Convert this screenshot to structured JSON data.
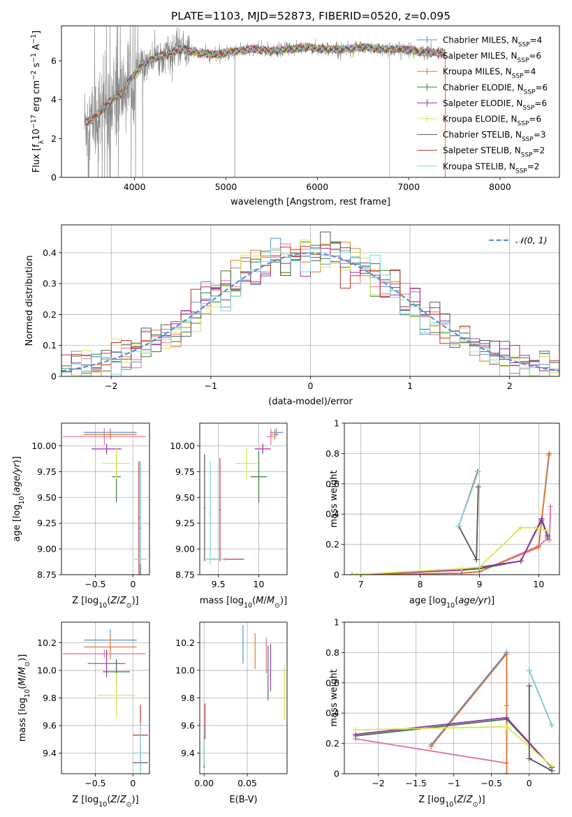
{
  "title": "PLATE=1103, MJD=52873, FIBERID=0520, z=0.095",
  "colors": {
    "Chabrier MILES": "#5b8fd9",
    "Salpeter MILES": "#e0709e",
    "Kroupa MILES": "#e07a2d",
    "Chabrier ELODIE": "#3a7a3a",
    "Salpeter ELODIE": "#9b2fae",
    "Kroupa ELODIE": "#d5e84a",
    "Chabrier STELIB": "#555555",
    "Salpeter STELIB": "#c0302f",
    "Kroupa STELIB": "#7fd5d8",
    "data": "#888888",
    "normal": "#5b8fd9"
  },
  "chart_data": [
    {
      "type": "line",
      "id": "spectrum",
      "title": "PLATE=1103, MJD=52873, FIBERID=0520, z=0.095",
      "xlabel": "wavelength [Angstrom, rest frame]",
      "ylabel": "Flux [f_λ10^-17 erg cm^-2 s^-1 A^-1]",
      "xlim": [
        3200,
        8650
      ],
      "ylim": [
        0,
        7.8
      ],
      "xticks": [
        4000,
        5000,
        6000,
        7000,
        8000
      ],
      "yticks": [
        0,
        2,
        4,
        6
      ],
      "legend": "upper right",
      "data_span": [
        3450,
        7400
      ],
      "model_points": [
        [
          3450,
          2.8
        ],
        [
          3550,
          3.0
        ],
        [
          3650,
          3.5
        ],
        [
          3750,
          4.0
        ],
        [
          3850,
          4.3
        ],
        [
          3950,
          5.0
        ],
        [
          4050,
          5.6
        ],
        [
          4150,
          6.0
        ],
        [
          4250,
          6.2
        ],
        [
          4350,
          6.3
        ],
        [
          4500,
          6.6
        ],
        [
          4700,
          6.4
        ],
        [
          4900,
          6.3
        ],
        [
          5100,
          6.5
        ],
        [
          5300,
          6.6
        ],
        [
          5500,
          6.5
        ],
        [
          5700,
          6.6
        ],
        [
          5900,
          6.7
        ],
        [
          6100,
          6.6
        ],
        [
          6300,
          6.6
        ],
        [
          6500,
          6.7
        ],
        [
          6700,
          6.6
        ],
        [
          6900,
          6.6
        ],
        [
          7100,
          6.5
        ],
        [
          7300,
          6.4
        ],
        [
          7400,
          6.4
        ]
      ],
      "series": [
        {
          "name": "Chabrier MILES",
          "nssp": "4"
        },
        {
          "name": "Salpeter MILES",
          "nssp": "6"
        },
        {
          "name": "Kroupa MILES",
          "nssp": "4"
        },
        {
          "name": "Chabrier ELODIE",
          "nssp": "6"
        },
        {
          "name": "Salpeter ELODIE",
          "nssp": "6"
        },
        {
          "name": "Kroupa ELODIE",
          "nssp": "6"
        },
        {
          "name": "Chabrier STELIB",
          "nssp": "3"
        },
        {
          "name": "Salpeter STELIB",
          "nssp": "2"
        },
        {
          "name": "Kroupa STELIB",
          "nssp": "2"
        }
      ]
    },
    {
      "type": "histogram",
      "id": "residuals",
      "xlabel": "(data-model)/error",
      "ylabel": "Normed distribution",
      "xlim": [
        -2.5,
        2.5
      ],
      "ylim": [
        0,
        0.49
      ],
      "xticks": [
        -2,
        -1,
        0,
        1,
        2
      ],
      "yticks": [
        0.0,
        0.1,
        0.2,
        0.3,
        0.4
      ],
      "bin_width": 0.1,
      "curve_label": "𝒩(0, 1)",
      "legend": "upper right",
      "grid": true
    },
    {
      "type": "errorbar",
      "id": "age_vs_Z",
      "xlabel": "Z [log10(Z/Z⊙)]",
      "ylabel": "age  [log10(age/yr)]",
      "xlim": [
        -0.95,
        0.22
      ],
      "ylim": [
        8.75,
        10.22
      ],
      "xticks": [
        -0.5,
        0.0
      ],
      "yticks": [
        8.75,
        9.0,
        9.25,
        9.5,
        9.75,
        10.0
      ],
      "ytick_labels": [
        "8.75",
        "9.00",
        "9.25",
        "9.50",
        "9.75",
        "10.00"
      ],
      "points": [
        {
          "series": "Chabrier MILES",
          "x": -0.3,
          "xerr": 0.35,
          "y": 10.13,
          "yerr": 0.04
        },
        {
          "series": "Salpeter MILES",
          "x": -0.38,
          "xerr": 0.55,
          "y": 10.09,
          "yerr": 0.08
        },
        {
          "series": "Kroupa MILES",
          "x": -0.3,
          "xerr": 0.35,
          "y": 10.11,
          "yerr": 0.05
        },
        {
          "series": "Chabrier ELODIE",
          "x": -0.22,
          "xerr": 0.06,
          "y": 9.7,
          "yerr": 0.25
        },
        {
          "series": "Salpeter ELODIE",
          "x": -0.35,
          "xerr": 0.2,
          "y": 9.97,
          "yerr": 0.05
        },
        {
          "series": "Kroupa ELODIE",
          "x": -0.22,
          "xerr": 0.18,
          "y": 9.83,
          "yerr": 0.15
        },
        {
          "series": "Chabrier STELIB",
          "x": 0.1,
          "xerr": 0.01,
          "y": 9.2,
          "yerr": 0.65
        },
        {
          "series": "Salpeter STELIB",
          "x": 0.08,
          "xerr": 0.01,
          "y": 9.3,
          "yerr": 0.55
        },
        {
          "series": "Kroupa STELIB",
          "x": 0.1,
          "xerr": 0.08,
          "y": 8.9,
          "yerr": 0.01
        },
        {
          "series": "Kroupa STELIB",
          "x": 0.1,
          "xerr": 0.01,
          "y": 9.35,
          "yerr": 0.5
        }
      ]
    },
    {
      "type": "errorbar",
      "id": "age_vs_mass",
      "xlabel": "mass [log10(M/M⊙)]",
      "ylabel": "",
      "xlim": [
        9.27,
        10.35
      ],
      "ylim": [
        8.75,
        10.22
      ],
      "xticks": [
        9.5,
        10.0
      ],
      "yticks": [
        8.75,
        9.0,
        9.25,
        9.5,
        9.75,
        10.0
      ],
      "ytick_labels": [
        "8.75",
        "9.00",
        "9.25",
        "9.50",
        "9.75",
        "10.00"
      ],
      "points": [
        {
          "series": "Chabrier MILES",
          "x": 10.22,
          "xerr": 0.08,
          "y": 10.13,
          "yerr": 0.04
        },
        {
          "series": "Salpeter MILES",
          "x": 10.15,
          "xerr": 0.05,
          "y": 10.09,
          "yerr": 0.08
        },
        {
          "series": "Kroupa MILES",
          "x": 10.2,
          "xerr": 0.05,
          "y": 10.11,
          "yerr": 0.05
        },
        {
          "series": "Chabrier ELODIE",
          "x": 10.0,
          "xerr": 0.1,
          "y": 9.7,
          "yerr": 0.25
        },
        {
          "series": "Salpeter ELODIE",
          "x": 10.05,
          "xerr": 0.1,
          "y": 9.97,
          "yerr": 0.05
        },
        {
          "series": "Kroupa ELODIE",
          "x": 9.85,
          "xerr": 0.14,
          "y": 9.83,
          "yerr": 0.15
        },
        {
          "series": "Chabrier STELIB",
          "x": 9.33,
          "xerr": 0.01,
          "y": 9.4,
          "yerr": 0.52
        },
        {
          "series": "Salpeter STELIB",
          "x": 9.52,
          "xerr": 0.01,
          "y": 9.38,
          "yerr": 0.5
        },
        {
          "series": "Salpeter STELIB",
          "x": 9.58,
          "xerr": 0.24,
          "y": 8.9,
          "yerr": 0.01
        },
        {
          "series": "Kroupa STELIB",
          "x": 9.4,
          "xerr": 0.01,
          "y": 9.35,
          "yerr": 0.5
        },
        {
          "series": "Kroupa STELIB",
          "x": 9.45,
          "xerr": 0.14,
          "y": 8.9,
          "yerr": 0.01
        }
      ]
    },
    {
      "type": "line",
      "id": "mass_weight_vs_age",
      "xlabel": "age  [log10(age/yr)]",
      "ylabel": "mass weight",
      "xlim": [
        6.72,
        10.35
      ],
      "ylim": [
        0,
        1.0
      ],
      "xticks": [
        7,
        8,
        9,
        10
      ],
      "yticks": [
        0.0,
        0.2,
        0.4,
        0.6,
        0.8,
        1.0
      ],
      "series": [
        {
          "name": "Chabrier MILES",
          "x": [
            6.85,
            8.7,
            9.0,
            10.0,
            10.18
          ],
          "y": [
            0.0,
            0.01,
            0.02,
            0.19,
            0.8
          ]
        },
        {
          "name": "Salpeter MILES",
          "x": [
            6.85,
            8.7,
            9.0,
            10.0,
            10.15,
            10.18,
            10.2
          ],
          "y": [
            0.0,
            0.01,
            0.02,
            0.19,
            0.24,
            0.23,
            0.45
          ]
        },
        {
          "name": "Kroupa MILES",
          "x": [
            6.85,
            8.7,
            9.0,
            10.0,
            10.17
          ],
          "y": [
            0.0,
            0.01,
            0.02,
            0.18,
            0.79
          ]
        },
        {
          "name": "Chabrier ELODIE",
          "x": [
            6.85,
            8.7,
            9.0,
            9.7,
            10.05,
            10.15
          ],
          "y": [
            0.0,
            0.03,
            0.04,
            0.09,
            0.36,
            0.25
          ]
        },
        {
          "name": "Salpeter ELODIE",
          "x": [
            6.85,
            8.7,
            9.0,
            9.7,
            10.05,
            10.15
          ],
          "y": [
            0.0,
            0.03,
            0.05,
            0.09,
            0.37,
            0.26
          ]
        },
        {
          "name": "Kroupa ELODIE",
          "x": [
            6.85,
            8.7,
            9.0,
            9.7,
            9.95,
            10.15
          ],
          "y": [
            0.0,
            0.04,
            0.05,
            0.31,
            0.31,
            0.29
          ]
        },
        {
          "name": "Chabrier STELIB",
          "x": [
            8.65,
            8.95,
            8.98
          ],
          "y": [
            0.32,
            0.1,
            0.58
          ]
        },
        {
          "name": "Salpeter STELIB",
          "x": [
            8.65,
            8.97
          ],
          "y": [
            0.32,
            0.68
          ]
        },
        {
          "name": "Kroupa STELIB",
          "x": [
            8.65,
            8.98
          ],
          "y": [
            0.32,
            0.68
          ]
        }
      ]
    },
    {
      "type": "errorbar",
      "id": "mass_vs_Z",
      "xlabel": "Z [log10(Z/Z⊙)]",
      "ylabel": "mass [log10(M/M⊙)]",
      "xlim": [
        -0.95,
        0.22
      ],
      "ylim": [
        9.25,
        10.35
      ],
      "xticks": [
        -0.5,
        0.0
      ],
      "yticks": [
        9.4,
        9.6,
        9.8,
        10.0,
        10.2
      ],
      "ytick_labels": [
        "9.4",
        "9.6",
        "9.8",
        "10.0",
        "10.2"
      ],
      "points": [
        {
          "series": "Chabrier MILES",
          "x": -0.3,
          "xerr": 0.35,
          "y": 10.22,
          "yerr": 0.08
        },
        {
          "series": "Salpeter MILES",
          "x": -0.38,
          "xerr": 0.55,
          "y": 10.12,
          "yerr": 0.03
        },
        {
          "series": "Kroupa MILES",
          "x": -0.3,
          "xerr": 0.35,
          "y": 10.17,
          "yerr": 0.09
        },
        {
          "series": "Chabrier ELODIE",
          "x": -0.22,
          "xerr": 0.18,
          "y": 9.99,
          "yerr": 0.09
        },
        {
          "series": "Salpeter ELODIE",
          "x": -0.35,
          "xerr": 0.25,
          "y": 10.05,
          "yerr": 0.1
        },
        {
          "series": "Kroupa ELODIE",
          "x": -0.22,
          "xerr": 0.25,
          "y": 9.82,
          "yerr": 0.16
        },
        {
          "series": "Chabrier STELIB",
          "x": 0.1,
          "xerr": 0.1,
          "y": 9.33,
          "yerr": 0.1
        },
        {
          "series": "Salpeter STELIB",
          "x": 0.1,
          "xerr": 0.1,
          "y": 9.53,
          "yerr": 0.22
        },
        {
          "series": "Kroupa STELIB",
          "x": 0.1,
          "xerr": 0.1,
          "y": 9.4,
          "yerr": 0.22
        }
      ]
    },
    {
      "type": "errorbar",
      "id": "mass_vs_ebv",
      "xlabel": "E(B-V)",
      "ylabel": "",
      "xlim": [
        -0.005,
        0.096
      ],
      "ylim": [
        9.25,
        10.35
      ],
      "xticks": [
        0.0,
        0.05
      ],
      "xtick_labels": [
        "0.00",
        "0.05"
      ],
      "yticks": [
        9.4,
        9.6,
        9.8,
        10.0,
        10.2
      ],
      "ytick_labels": [
        "9.4",
        "9.6",
        "9.8",
        "10.0",
        "10.2"
      ],
      "points": [
        {
          "series": "Chabrier MILES",
          "x": 0.045,
          "y": 10.19,
          "yerr": 0.14
        },
        {
          "series": "Kroupa MILES",
          "x": 0.059,
          "y": 10.14,
          "yerr": 0.13
        },
        {
          "series": "Salpeter MILES",
          "x": 0.072,
          "y": 10.11,
          "yerr": 0.13
        },
        {
          "series": "Chabrier ELODIE",
          "x": 0.074,
          "y": 9.98,
          "yerr": 0.2
        },
        {
          "series": "Salpeter ELODIE",
          "x": 0.077,
          "y": 10.02,
          "yerr": 0.17
        },
        {
          "series": "Kroupa ELODIE",
          "x": 0.093,
          "y": 9.84,
          "yerr": 0.2
        },
        {
          "series": "Chabrier STELIB",
          "x": 0.0,
          "y": 9.41,
          "yerr": 0.12
        },
        {
          "series": "Salpeter STELIB",
          "x": 0.001,
          "y": 9.63,
          "yerr": 0.13
        },
        {
          "series": "Kroupa STELIB",
          "x": 0.0,
          "y": 9.45,
          "yerr": 0.14
        }
      ]
    },
    {
      "type": "line",
      "id": "mass_weight_vs_Z",
      "xlabel": "Z [log10(Z/Z⊙)]",
      "ylabel": "mass weight",
      "xlim": [
        -2.45,
        0.4
      ],
      "ylim": [
        0,
        1.0
      ],
      "xticks": [
        -2.0,
        -1.5,
        -1.0,
        -0.5,
        0.0
      ],
      "yticks": [
        0.0,
        0.2,
        0.4,
        0.6,
        0.8,
        1.0
      ],
      "series": [
        {
          "name": "Chabrier MILES",
          "x": [
            -1.3,
            -0.3,
            -0.3
          ],
          "y": [
            0.19,
            0.8,
            0.0
          ]
        },
        {
          "name": "Salpeter MILES",
          "x": [
            -2.3,
            -0.3,
            -0.3,
            -0.3
          ],
          "y": [
            0.23,
            0.07,
            0.45,
            0.0
          ]
        },
        {
          "name": "Kroupa MILES",
          "x": [
            -1.3,
            -0.3,
            -0.3
          ],
          "y": [
            0.18,
            0.79,
            0.0
          ]
        },
        {
          "name": "Chabrier ELODIE",
          "x": [
            -2.3,
            -0.3,
            0.3
          ],
          "y": [
            0.25,
            0.36,
            0.04
          ]
        },
        {
          "name": "Salpeter ELODIE",
          "x": [
            -2.3,
            -0.3,
            0.3
          ],
          "y": [
            0.26,
            0.37,
            0.04
          ]
        },
        {
          "name": "Kroupa ELODIE",
          "x": [
            -2.3,
            -0.3,
            0.3
          ],
          "y": [
            0.29,
            0.31,
            0.05
          ]
        },
        {
          "name": "Chabrier STELIB",
          "x": [
            0.0,
            0.0,
            0.3
          ],
          "y": [
            0.58,
            0.1,
            0.02
          ]
        },
        {
          "name": "Salpeter STELIB",
          "x": [
            0.0,
            0.3
          ],
          "y": [
            0.68,
            0.32
          ]
        },
        {
          "name": "Kroupa STELIB",
          "x": [
            0.0,
            0.3
          ],
          "y": [
            0.68,
            0.32
          ]
        }
      ]
    }
  ]
}
